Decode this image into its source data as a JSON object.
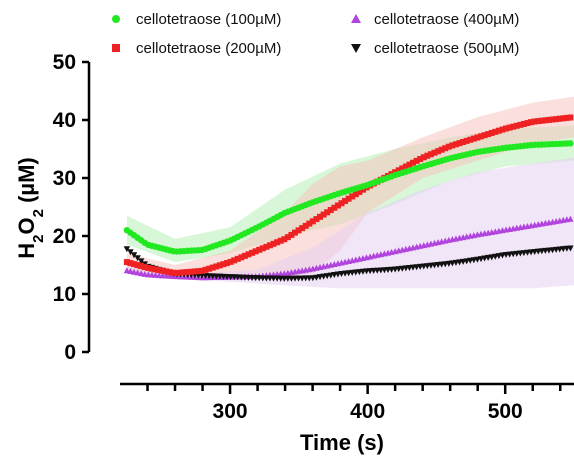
{
  "chart_data": {
    "type": "line",
    "xlabel": "Time (s)",
    "ylabel_main": "H",
    "ylabel_sub1": "2",
    "ylabel_mid": "O",
    "ylabel_sub2": "2",
    "ylabel_unit": " (µM)",
    "xlim": [
      220,
      550
    ],
    "ylim": [
      0,
      50
    ],
    "x_ticks": [
      300,
      400,
      500
    ],
    "x_minor_step": 20,
    "y_ticks": [
      0,
      10,
      20,
      30,
      40,
      50
    ],
    "legend_position": "top",
    "series": [
      {
        "name": "cellotetraose (100µM)",
        "color": "#22e822",
        "band_color": "#b8f0b8",
        "marker": "circle",
        "points": [
          [
            225,
            21
          ],
          [
            240,
            18.5
          ],
          [
            260,
            17.3
          ],
          [
            280,
            17.6
          ],
          [
            300,
            19.2
          ],
          [
            320,
            21.5
          ],
          [
            340,
            24
          ],
          [
            360,
            25.8
          ],
          [
            380,
            27.4
          ],
          [
            400,
            28.8
          ],
          [
            420,
            30.5
          ],
          [
            440,
            32
          ],
          [
            460,
            33.4
          ],
          [
            480,
            34.5
          ],
          [
            500,
            35.2
          ],
          [
            520,
            35.7
          ],
          [
            550,
            36
          ]
        ],
        "band": [
          [
            225,
            18.5,
            23.5
          ],
          [
            260,
            15.5,
            19.5
          ],
          [
            300,
            17,
            21.5
          ],
          [
            340,
            20,
            28
          ],
          [
            380,
            22,
            32.5
          ],
          [
            420,
            25.5,
            35
          ],
          [
            460,
            29.5,
            37
          ],
          [
            500,
            32,
            38.5
          ],
          [
            550,
            33,
            39
          ]
        ]
      },
      {
        "name": "cellotetraose (200µM)",
        "color": "#ee2222",
        "band_color": "#f6c4c0",
        "marker": "square",
        "points": [
          [
            225,
            15.5
          ],
          [
            240,
            14.5
          ],
          [
            260,
            13.6
          ],
          [
            280,
            14
          ],
          [
            300,
            15.5
          ],
          [
            320,
            17.5
          ],
          [
            340,
            19.5
          ],
          [
            360,
            22.5
          ],
          [
            380,
            25.5
          ],
          [
            400,
            28.5
          ],
          [
            420,
            31
          ],
          [
            440,
            33.5
          ],
          [
            460,
            35.5
          ],
          [
            480,
            37
          ],
          [
            500,
            38.5
          ],
          [
            520,
            39.7
          ],
          [
            550,
            40.5
          ]
        ],
        "band": [
          [
            225,
            14,
            17
          ],
          [
            260,
            12.5,
            15
          ],
          [
            300,
            13.5,
            17.5
          ],
          [
            340,
            13,
            24
          ],
          [
            360,
            13.5,
            29
          ],
          [
            380,
            17.5,
            32
          ],
          [
            400,
            24,
            33
          ],
          [
            440,
            30,
            37
          ],
          [
            480,
            33,
            40.5
          ],
          [
            520,
            36,
            43
          ],
          [
            550,
            37,
            44
          ]
        ]
      },
      {
        "name": "cellotetraose (400µM)",
        "color": "#b044dd",
        "band_color": "#e6d0f2",
        "marker": "triangle-up",
        "points": [
          [
            225,
            14
          ],
          [
            240,
            13.3
          ],
          [
            260,
            13
          ],
          [
            280,
            12.8
          ],
          [
            300,
            12.9
          ],
          [
            320,
            13
          ],
          [
            340,
            13.5
          ],
          [
            360,
            14.3
          ],
          [
            380,
            15.3
          ],
          [
            400,
            16.3
          ],
          [
            420,
            17.3
          ],
          [
            440,
            18.3
          ],
          [
            460,
            19.3
          ],
          [
            480,
            20.2
          ],
          [
            500,
            21
          ],
          [
            520,
            21.8
          ],
          [
            550,
            23
          ]
        ],
        "band": [
          [
            225,
            13.5,
            14.8
          ],
          [
            280,
            12.4,
            13.6
          ],
          [
            320,
            11.8,
            14.2
          ],
          [
            360,
            11.2,
            18
          ],
          [
            380,
            11,
            21
          ],
          [
            400,
            11,
            24
          ],
          [
            440,
            11,
            28
          ],
          [
            480,
            11,
            31
          ],
          [
            520,
            11,
            32.5
          ],
          [
            550,
            11.5,
            33.5
          ]
        ]
      },
      {
        "name": "cellotetraose (500µM)",
        "color": "#111111",
        "band_color": "#dddddd",
        "marker": "triangle-down",
        "points": [
          [
            225,
            17.8
          ],
          [
            240,
            14.8
          ],
          [
            260,
            13.5
          ],
          [
            280,
            13.2
          ],
          [
            300,
            13
          ],
          [
            320,
            12.8
          ],
          [
            340,
            12.7
          ],
          [
            360,
            12.8
          ],
          [
            380,
            13.5
          ],
          [
            400,
            14
          ],
          [
            420,
            14.3
          ],
          [
            440,
            14.8
          ],
          [
            460,
            15.3
          ],
          [
            480,
            16
          ],
          [
            500,
            16.8
          ],
          [
            520,
            17.3
          ],
          [
            550,
            18
          ]
        ],
        "band": []
      }
    ]
  }
}
